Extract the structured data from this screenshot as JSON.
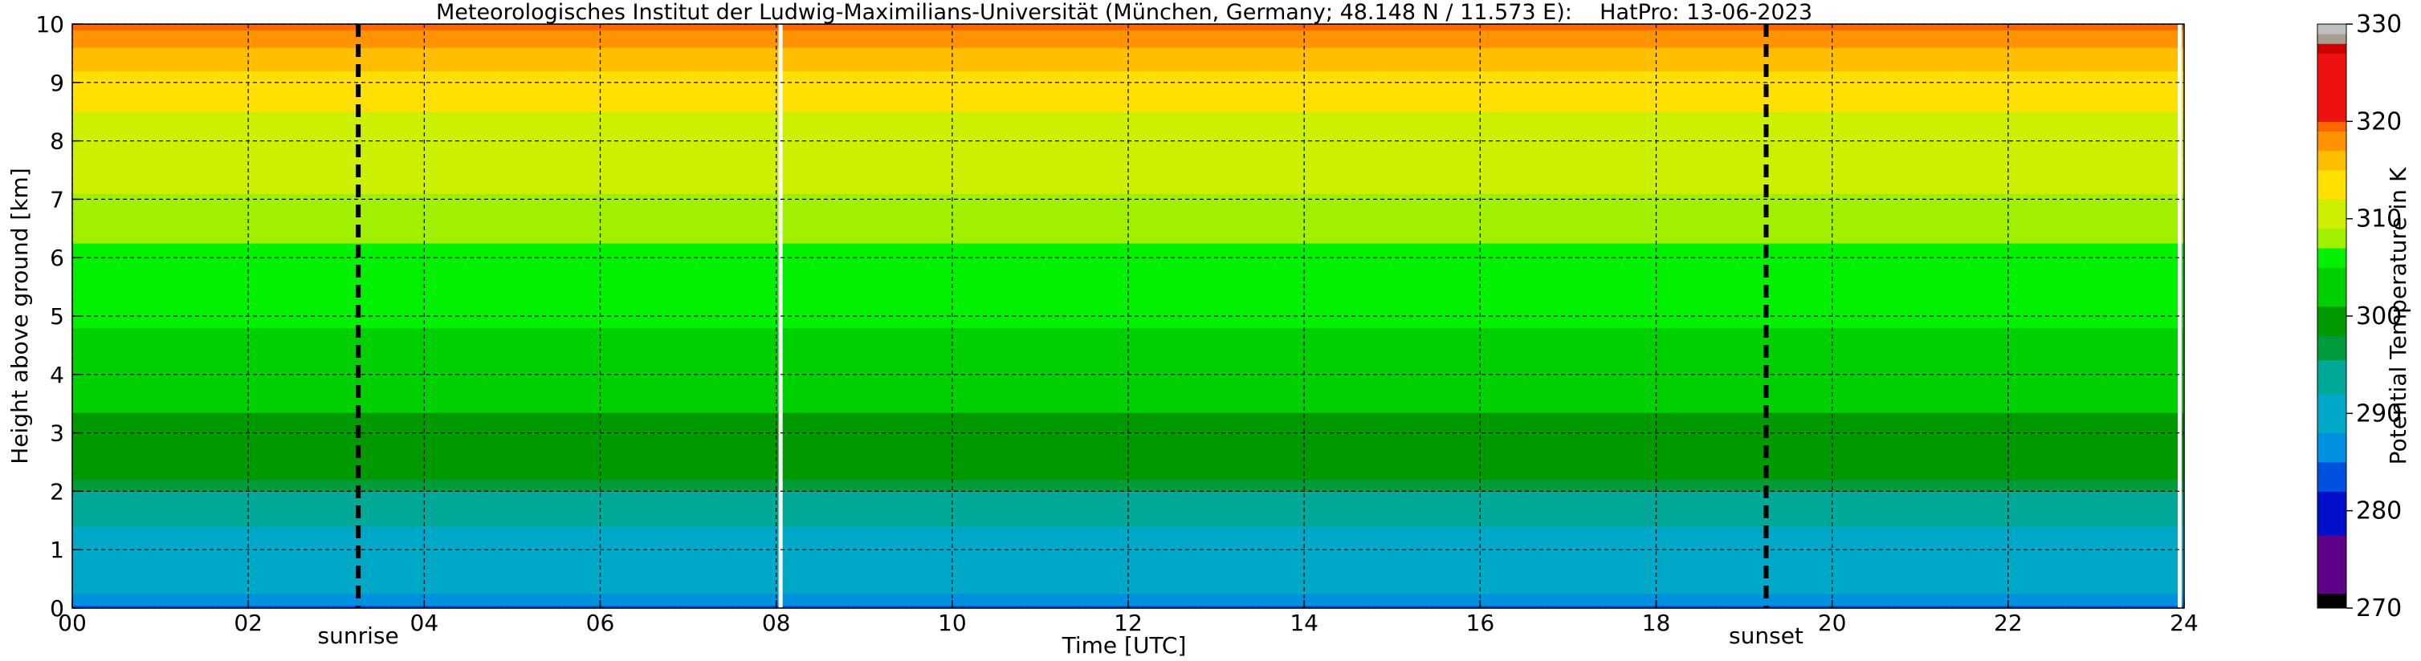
{
  "chart_data": {
    "type": "heatmap",
    "title": "Meteorologisches Institut der Ludwig-Maximilians-Universität (München, Germany; 48.148 N / 11.573 E):    HatPro: 13-06-2023",
    "xlabel": "Time [UTC]",
    "ylabel": "Height above ground [km]",
    "xlim": [
      0,
      24
    ],
    "ylim": [
      0,
      10
    ],
    "x_ticks": [
      "00",
      "02",
      "04",
      "06",
      "08",
      "10",
      "12",
      "14",
      "16",
      "18",
      "20",
      "22",
      "24"
    ],
    "y_ticks": [
      "0",
      "1",
      "2",
      "3",
      "4",
      "5",
      "6",
      "7",
      "8",
      "9",
      "10"
    ],
    "grid": true,
    "annotations": [
      {
        "label": "sunrise",
        "x": 3.25
      },
      {
        "label": "sunset",
        "x": 19.25
      }
    ],
    "data_gaps": [
      {
        "x": 8.05
      },
      {
        "x": 23.95
      }
    ],
    "colorbar": {
      "label": "Potential Temperature in K",
      "range": [
        270,
        330
      ],
      "ticks": [
        "270",
        "280",
        "290",
        "300",
        "310",
        "320",
        "330"
      ],
      "levels": [
        {
          "from": 270,
          "to": 271.5,
          "color": "#000000"
        },
        {
          "from": 271.5,
          "to": 277.5,
          "color": "#5e0088"
        },
        {
          "from": 277.5,
          "to": 282,
          "color": "#0010c8"
        },
        {
          "from": 282,
          "to": 285,
          "color": "#0050e0"
        },
        {
          "from": 285,
          "to": 288,
          "color": "#0090e0"
        },
        {
          "from": 288,
          "to": 292,
          "color": "#00a8c8"
        },
        {
          "from": 292,
          "to": 295.5,
          "color": "#00a898"
        },
        {
          "from": 295.5,
          "to": 298,
          "color": "#009c3c"
        },
        {
          "from": 298,
          "to": 301,
          "color": "#009900"
        },
        {
          "from": 301,
          "to": 305,
          "color": "#00d000"
        },
        {
          "from": 305,
          "to": 307,
          "color": "#00f000"
        },
        {
          "from": 307,
          "to": 309,
          "color": "#a0f000"
        },
        {
          "from": 309,
          "to": 312,
          "color": "#ccf000"
        },
        {
          "from": 312,
          "to": 315,
          "color": "#ffe000"
        },
        {
          "from": 315,
          "to": 317,
          "color": "#ffbf00"
        },
        {
          "from": 317,
          "to": 319,
          "color": "#ff9400"
        },
        {
          "from": 319,
          "to": 320,
          "color": "#ff6600"
        },
        {
          "from": 320,
          "to": 327,
          "color": "#ee1111"
        },
        {
          "from": 327,
          "to": 328,
          "color": "#cc0000"
        },
        {
          "from": 328,
          "to": 329,
          "color": "#a89c8c"
        },
        {
          "from": 329,
          "to": 330,
          "color": "#c0c0c0"
        }
      ]
    },
    "profile": [
      {
        "h": 0.0,
        "theta": 284
      },
      {
        "h": 0.3,
        "theta": 289
      },
      {
        "h": 1.0,
        "theta": 291
      },
      {
        "h": 1.8,
        "theta": 293
      },
      {
        "h": 2.2,
        "theta": 298
      },
      {
        "h": 3.0,
        "theta": 300
      },
      {
        "h": 3.7,
        "theta": 302
      },
      {
        "h": 4.8,
        "theta": 305
      },
      {
        "h": 6.0,
        "theta": 306.5
      },
      {
        "h": 6.7,
        "theta": 308
      },
      {
        "h": 7.5,
        "theta": 310
      },
      {
        "h": 8.5,
        "theta": 312
      },
      {
        "h": 9.2,
        "theta": 315
      },
      {
        "h": 9.6,
        "theta": 317
      },
      {
        "h": 10.0,
        "theta": 319.5
      }
    ]
  }
}
